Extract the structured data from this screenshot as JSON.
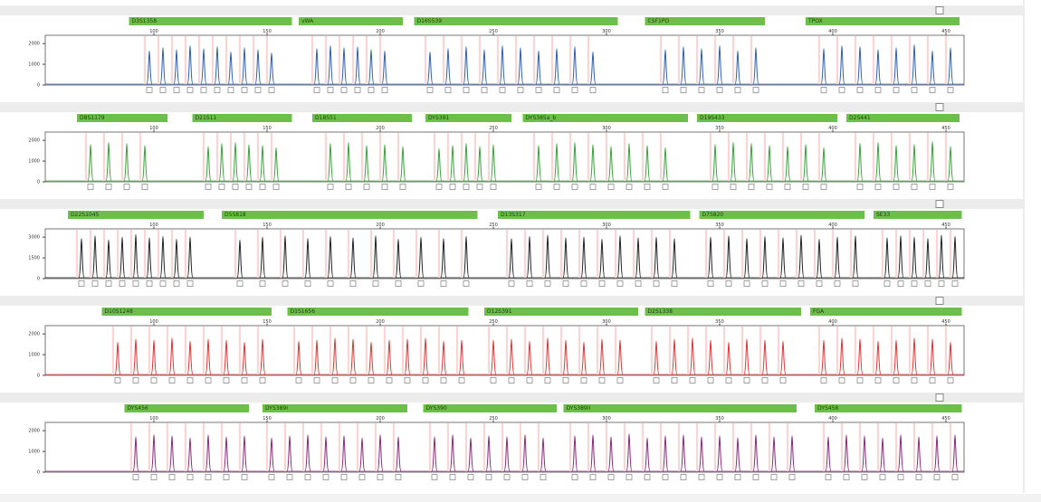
{
  "xlim": [
    52,
    458
  ],
  "xticks": [
    100,
    150,
    200,
    250,
    300,
    350,
    400,
    450
  ],
  "panels": [
    {
      "color": "#2f5fb0",
      "ylim": [
        0,
        2400
      ],
      "yticks": [
        0,
        1000,
        2000
      ],
      "markers": [
        {
          "name": "D3S1358",
          "range": [
            89,
            161
          ]
        },
        {
          "name": "vWA",
          "range": [
            164,
            210
          ]
        },
        {
          "name": "D16S539",
          "range": [
            215,
            305
          ]
        },
        {
          "name": "CSF1PO",
          "range": [
            317,
            370
          ]
        },
        {
          "name": "TPOX",
          "range": [
            388,
            456
          ]
        }
      ],
      "peaks": {
        "x": [
          98,
          104,
          110,
          116,
          122,
          128,
          134,
          140,
          146,
          152,
          172,
          178,
          184,
          190,
          196,
          202,
          222,
          230,
          238,
          246,
          254,
          262,
          270,
          278,
          286,
          294,
          326,
          334,
          342,
          350,
          358,
          366,
          396,
          404,
          412,
          420,
          428,
          436,
          444,
          452
        ],
        "heights": [
          1650,
          1800,
          1700,
          1900,
          1750,
          1850,
          1600,
          1800,
          1700,
          1550,
          1750,
          1900,
          1800,
          1850,
          1700,
          1650,
          1600,
          1750,
          1850,
          1700,
          1900,
          1800,
          1650,
          1750,
          1850,
          1600,
          1700,
          1850,
          1750,
          1900,
          1650,
          1800,
          1750,
          1900,
          1850,
          1700,
          1800,
          1950,
          1650,
          1800
        ]
      }
    },
    {
      "color": "#3aa33a",
      "ylim": [
        0,
        2400
      ],
      "yticks": [
        0,
        1000,
        2000
      ],
      "markers": [
        {
          "name": "D8S1179",
          "range": [
            66,
            106
          ]
        },
        {
          "name": "D21S11",
          "range": [
            117,
            161
          ]
        },
        {
          "name": "D18S51",
          "range": [
            170,
            214
          ]
        },
        {
          "name": "DYS391",
          "range": [
            220,
            258
          ]
        },
        {
          "name": "DYS385a_b",
          "range": [
            263,
            336
          ]
        },
        {
          "name": "D19S433",
          "range": [
            340,
            402
          ]
        },
        {
          "name": "D2S441",
          "range": [
            406,
            456
          ]
        }
      ],
      "peaks": {
        "x": [
          72,
          80,
          88,
          96,
          124,
          130,
          136,
          142,
          148,
          154,
          178,
          186,
          194,
          202,
          210,
          226,
          232,
          238,
          244,
          250,
          270,
          278,
          286,
          294,
          302,
          310,
          318,
          326,
          348,
          356,
          364,
          372,
          380,
          388,
          396,
          412,
          420,
          428,
          436,
          444,
          452
        ],
        "heights": [
          1800,
          1900,
          1850,
          1750,
          1700,
          1850,
          1900,
          1800,
          1750,
          1650,
          1850,
          1900,
          1750,
          1800,
          1700,
          1600,
          1750,
          1850,
          1700,
          1800,
          1750,
          1850,
          1900,
          1800,
          1700,
          1850,
          1750,
          1650,
          1800,
          1900,
          1850,
          1750,
          1700,
          1800,
          1650,
          1850,
          1900,
          1750,
          1800,
          1950,
          1700
        ]
      }
    },
    {
      "color": "#222222",
      "ylim": [
        0,
        3600
      ],
      "yticks": [
        0,
        1500,
        3000
      ],
      "markers": [
        {
          "name": "D22S1045",
          "range": [
            62,
            122
          ]
        },
        {
          "name": "D5S818",
          "range": [
            130,
            243
          ]
        },
        {
          "name": "D13S317",
          "range": [
            252,
            337
          ]
        },
        {
          "name": "D7S820",
          "range": [
            341,
            414
          ]
        },
        {
          "name": "SE33",
          "range": [
            418,
            457
          ]
        }
      ],
      "peaks": {
        "x": [
          68,
          74,
          80,
          86,
          92,
          98,
          104,
          110,
          116,
          138,
          148,
          158,
          168,
          178,
          188,
          198,
          208,
          218,
          228,
          238,
          258,
          266,
          274,
          282,
          290,
          298,
          306,
          314,
          322,
          330,
          346,
          354,
          362,
          370,
          378,
          386,
          394,
          402,
          410,
          424,
          430,
          436,
          442,
          448,
          454
        ],
        "heights": [
          2900,
          3100,
          2800,
          3000,
          3200,
          2950,
          3050,
          2850,
          3000,
          2800,
          3000,
          3100,
          2900,
          3050,
          2950,
          3100,
          2850,
          3000,
          2900,
          3050,
          2900,
          3050,
          3150,
          2950,
          3000,
          2850,
          3100,
          2950,
          3000,
          2900,
          3000,
          3100,
          2900,
          3050,
          2950,
          3150,
          2850,
          3000,
          3100,
          2950,
          3100,
          3000,
          2900,
          3150,
          3050
        ]
      }
    },
    {
      "color": "#e03535",
      "ylim": [
        0,
        2400
      ],
      "yticks": [
        0,
        1000,
        2000
      ],
      "markers": [
        {
          "name": "D10S1248",
          "range": [
            77,
            152
          ]
        },
        {
          "name": "D1S1656",
          "range": [
            159,
            239
          ]
        },
        {
          "name": "D12S391",
          "range": [
            246,
            314
          ]
        },
        {
          "name": "D2S1338",
          "range": [
            317,
            386
          ]
        },
        {
          "name": "FGA",
          "range": [
            390,
            457
          ]
        }
      ],
      "peaks": {
        "x": [
          84,
          92,
          100,
          108,
          116,
          124,
          132,
          140,
          148,
          164,
          172,
          180,
          188,
          196,
          204,
          212,
          220,
          228,
          236,
          250,
          258,
          266,
          274,
          282,
          290,
          298,
          306,
          322,
          330,
          338,
          346,
          354,
          362,
          370,
          378,
          396,
          404,
          412,
          420,
          428,
          436,
          444,
          452
        ],
        "heights": [
          1600,
          1750,
          1700,
          1800,
          1650,
          1750,
          1700,
          1600,
          1750,
          1650,
          1700,
          1800,
          1750,
          1600,
          1700,
          1750,
          1800,
          1650,
          1700,
          1700,
          1750,
          1650,
          1800,
          1700,
          1600,
          1750,
          1700,
          1650,
          1750,
          1800,
          1700,
          1600,
          1750,
          1700,
          1650,
          1700,
          1800,
          1750,
          1650,
          1700,
          1800,
          1750,
          1600
        ]
      }
    },
    {
      "color": "#8a2a7a",
      "ylim": [
        0,
        2400
      ],
      "yticks": [
        0,
        1000,
        2000
      ],
      "markers": [
        {
          "name": "DYS456",
          "range": [
            87,
            142
          ]
        },
        {
          "name": "DYS389I",
          "range": [
            148,
            212
          ]
        },
        {
          "name": "DYS390",
          "range": [
            219,
            278
          ]
        },
        {
          "name": "DYS389II",
          "range": [
            281,
            384
          ]
        },
        {
          "name": "DYS458",
          "range": [
            392,
            457
          ]
        }
      ],
      "peaks": {
        "x": [
          92,
          100,
          108,
          116,
          124,
          132,
          140,
          152,
          160,
          168,
          176,
          184,
          192,
          200,
          208,
          224,
          232,
          240,
          248,
          256,
          264,
          272,
          286,
          294,
          302,
          310,
          318,
          326,
          334,
          342,
          350,
          358,
          366,
          374,
          382,
          398,
          406,
          414,
          422,
          430,
          438,
          446,
          454
        ],
        "heights": [
          1700,
          1800,
          1750,
          1650,
          1800,
          1700,
          1750,
          1650,
          1750,
          1800,
          1700,
          1750,
          1650,
          1800,
          1700,
          1700,
          1800,
          1650,
          1750,
          1700,
          1800,
          1650,
          1750,
          1800,
          1700,
          1850,
          1650,
          1750,
          1800,
          1700,
          1750,
          1650,
          1800,
          1700,
          1750,
          1700,
          1800,
          1750,
          1650,
          1800,
          1700,
          1750,
          1800
        ]
      }
    }
  ]
}
